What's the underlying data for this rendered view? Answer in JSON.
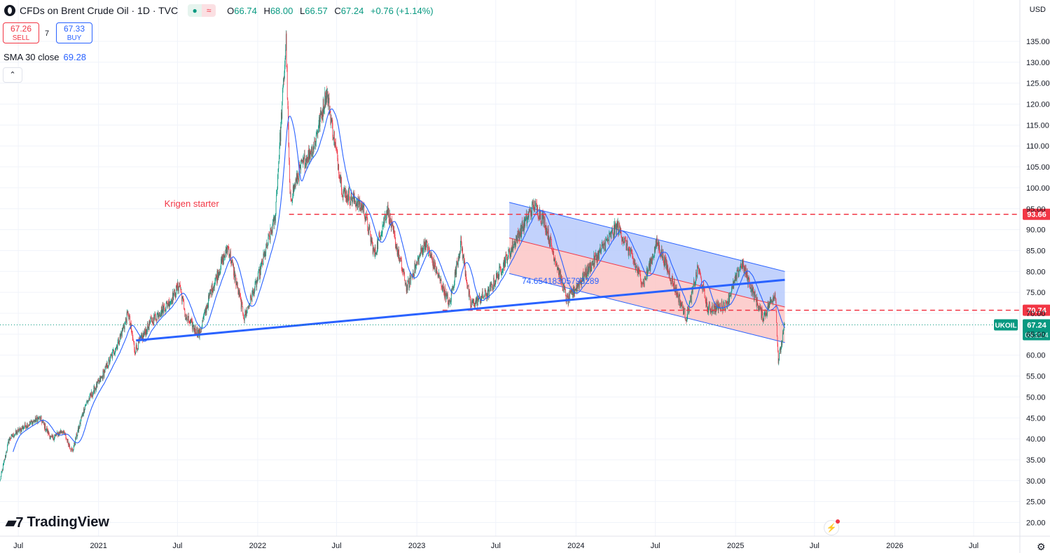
{
  "header": {
    "title": "CFDs on Brent Crude Oil · 1D · TVC",
    "ohlc": [
      {
        "key": "O",
        "value": "66.74"
      },
      {
        "key": "H",
        "value": "68.00"
      },
      {
        "key": "L",
        "value": "66.57"
      },
      {
        "key": "C",
        "value": "67.24"
      }
    ],
    "change": "+0.76 (+1.14%)"
  },
  "trade": {
    "sell_price": "67.26",
    "sell_label": "SELL",
    "buy_price": "67.33",
    "buy_label": "BUY",
    "spread": "7"
  },
  "indicator": {
    "label": "SMA 30 close",
    "value": "69.28"
  },
  "currency": "USD",
  "brand": "TradingView",
  "colors": {
    "up": "#089981",
    "down": "#f23645",
    "sma": "#2962ff",
    "trendline": "#2962ff",
    "level": "#f23645",
    "channel_upper": "#b3c7fb",
    "channel_lower": "#fbc2c2"
  },
  "chart_data": {
    "type": "candlestick",
    "symbol": "UKOIL",
    "ylim": [
      15,
      138
    ],
    "y_ticks": [
      20,
      25,
      30,
      35,
      40,
      45,
      50,
      55,
      60,
      65,
      70,
      75,
      80,
      85,
      90,
      95,
      100,
      105,
      110,
      115,
      120,
      125,
      130,
      135
    ],
    "x_range": [
      "2020-05-20",
      "2026-10-15"
    ],
    "x_ticks": [
      {
        "date": "2020-07-01",
        "label": "Jul"
      },
      {
        "date": "2021-01-01",
        "label": "2021"
      },
      {
        "date": "2021-07-01",
        "label": "Jul"
      },
      {
        "date": "2022-01-01",
        "label": "2022"
      },
      {
        "date": "2022-07-01",
        "label": "Jul"
      },
      {
        "date": "2023-01-01",
        "label": "2023"
      },
      {
        "date": "2023-07-01",
        "label": "Jul"
      },
      {
        "date": "2024-01-01",
        "label": "2024"
      },
      {
        "date": "2024-07-01",
        "label": "Jul"
      },
      {
        "date": "2025-01-01",
        "label": "2025"
      },
      {
        "date": "2025-07-01",
        "label": "Jul"
      },
      {
        "date": "2026-01-01",
        "label": "2026"
      },
      {
        "date": "2026-07-01",
        "label": "Jul"
      }
    ],
    "price_path": [
      [
        "2020-05-20",
        30
      ],
      [
        "2020-06-10",
        40
      ],
      [
        "2020-07-15",
        43
      ],
      [
        "2020-08-20",
        45
      ],
      [
        "2020-09-15",
        40
      ],
      [
        "2020-10-10",
        42
      ],
      [
        "2020-11-02",
        37
      ],
      [
        "2020-12-01",
        48
      ],
      [
        "2021-01-05",
        54
      ],
      [
        "2021-02-15",
        63
      ],
      [
        "2021-03-10",
        70
      ],
      [
        "2021-03-25",
        61
      ],
      [
        "2021-05-01",
        68
      ],
      [
        "2021-06-15",
        73
      ],
      [
        "2021-07-06",
        77
      ],
      [
        "2021-07-20",
        69
      ],
      [
        "2021-08-20",
        65
      ],
      [
        "2021-09-15",
        75
      ],
      [
        "2021-10-25",
        86
      ],
      [
        "2021-12-01",
        69
      ],
      [
        "2022-01-01",
        78
      ],
      [
        "2022-02-10",
        93
      ],
      [
        "2022-03-07",
        135
      ],
      [
        "2022-03-16",
        97
      ],
      [
        "2022-04-10",
        105
      ],
      [
        "2022-05-10",
        110
      ],
      [
        "2022-06-08",
        123
      ],
      [
        "2022-07-15",
        99
      ],
      [
        "2022-08-10",
        97
      ],
      [
        "2022-09-01",
        95
      ],
      [
        "2022-09-26",
        84
      ],
      [
        "2022-10-25",
        95
      ],
      [
        "2022-12-09",
        76
      ],
      [
        "2023-01-20",
        87
      ],
      [
        "2023-03-17",
        72
      ],
      [
        "2023-04-12",
        87
      ],
      [
        "2023-05-04",
        72
      ],
      [
        "2023-06-15",
        75
      ],
      [
        "2023-07-25",
        83
      ],
      [
        "2023-09-27",
        96
      ],
      [
        "2023-10-20",
        92
      ],
      [
        "2023-12-12",
        73
      ],
      [
        "2024-01-20",
        79
      ],
      [
        "2024-04-05",
        91
      ],
      [
        "2024-06-04",
        77
      ],
      [
        "2024-07-05",
        87
      ],
      [
        "2024-09-10",
        69
      ],
      [
        "2024-10-07",
        81
      ],
      [
        "2024-10-29",
        71
      ],
      [
        "2024-12-10",
        72
      ],
      [
        "2025-01-15",
        82
      ],
      [
        "2025-03-05",
        69
      ],
      [
        "2025-04-02",
        75
      ],
      [
        "2025-04-09",
        58.5
      ],
      [
        "2025-04-24",
        67.24
      ]
    ],
    "sma": {
      "period": 30,
      "source": "close",
      "last_value": 69.28
    },
    "horizontal_levels": [
      {
        "value": 93.66,
        "label": "93.66",
        "from": "2022-03-14"
      },
      {
        "value": 70.74,
        "label": "70.74",
        "from": "2023-03-01"
      }
    ],
    "trendline": {
      "start": [
        "2021-03-28",
        63.5
      ],
      "end": [
        "2025-04-24",
        78.0
      ]
    },
    "channel": {
      "start_date": "2023-08-01",
      "end_date": "2025-04-24",
      "upper": [
        96.5,
        80.0
      ],
      "middle": [
        88.0,
        71.5
      ],
      "lower": [
        79.5,
        63.0
      ]
    },
    "channel_label": "74.65418305793289",
    "annotation": {
      "text": "Krigen starter",
      "date": "2021-06-01",
      "value": 95.5
    },
    "last_price": {
      "value": 67.24,
      "label": "67.24",
      "symbol": "UKOIL",
      "countdown": "03:22:4"
    }
  }
}
